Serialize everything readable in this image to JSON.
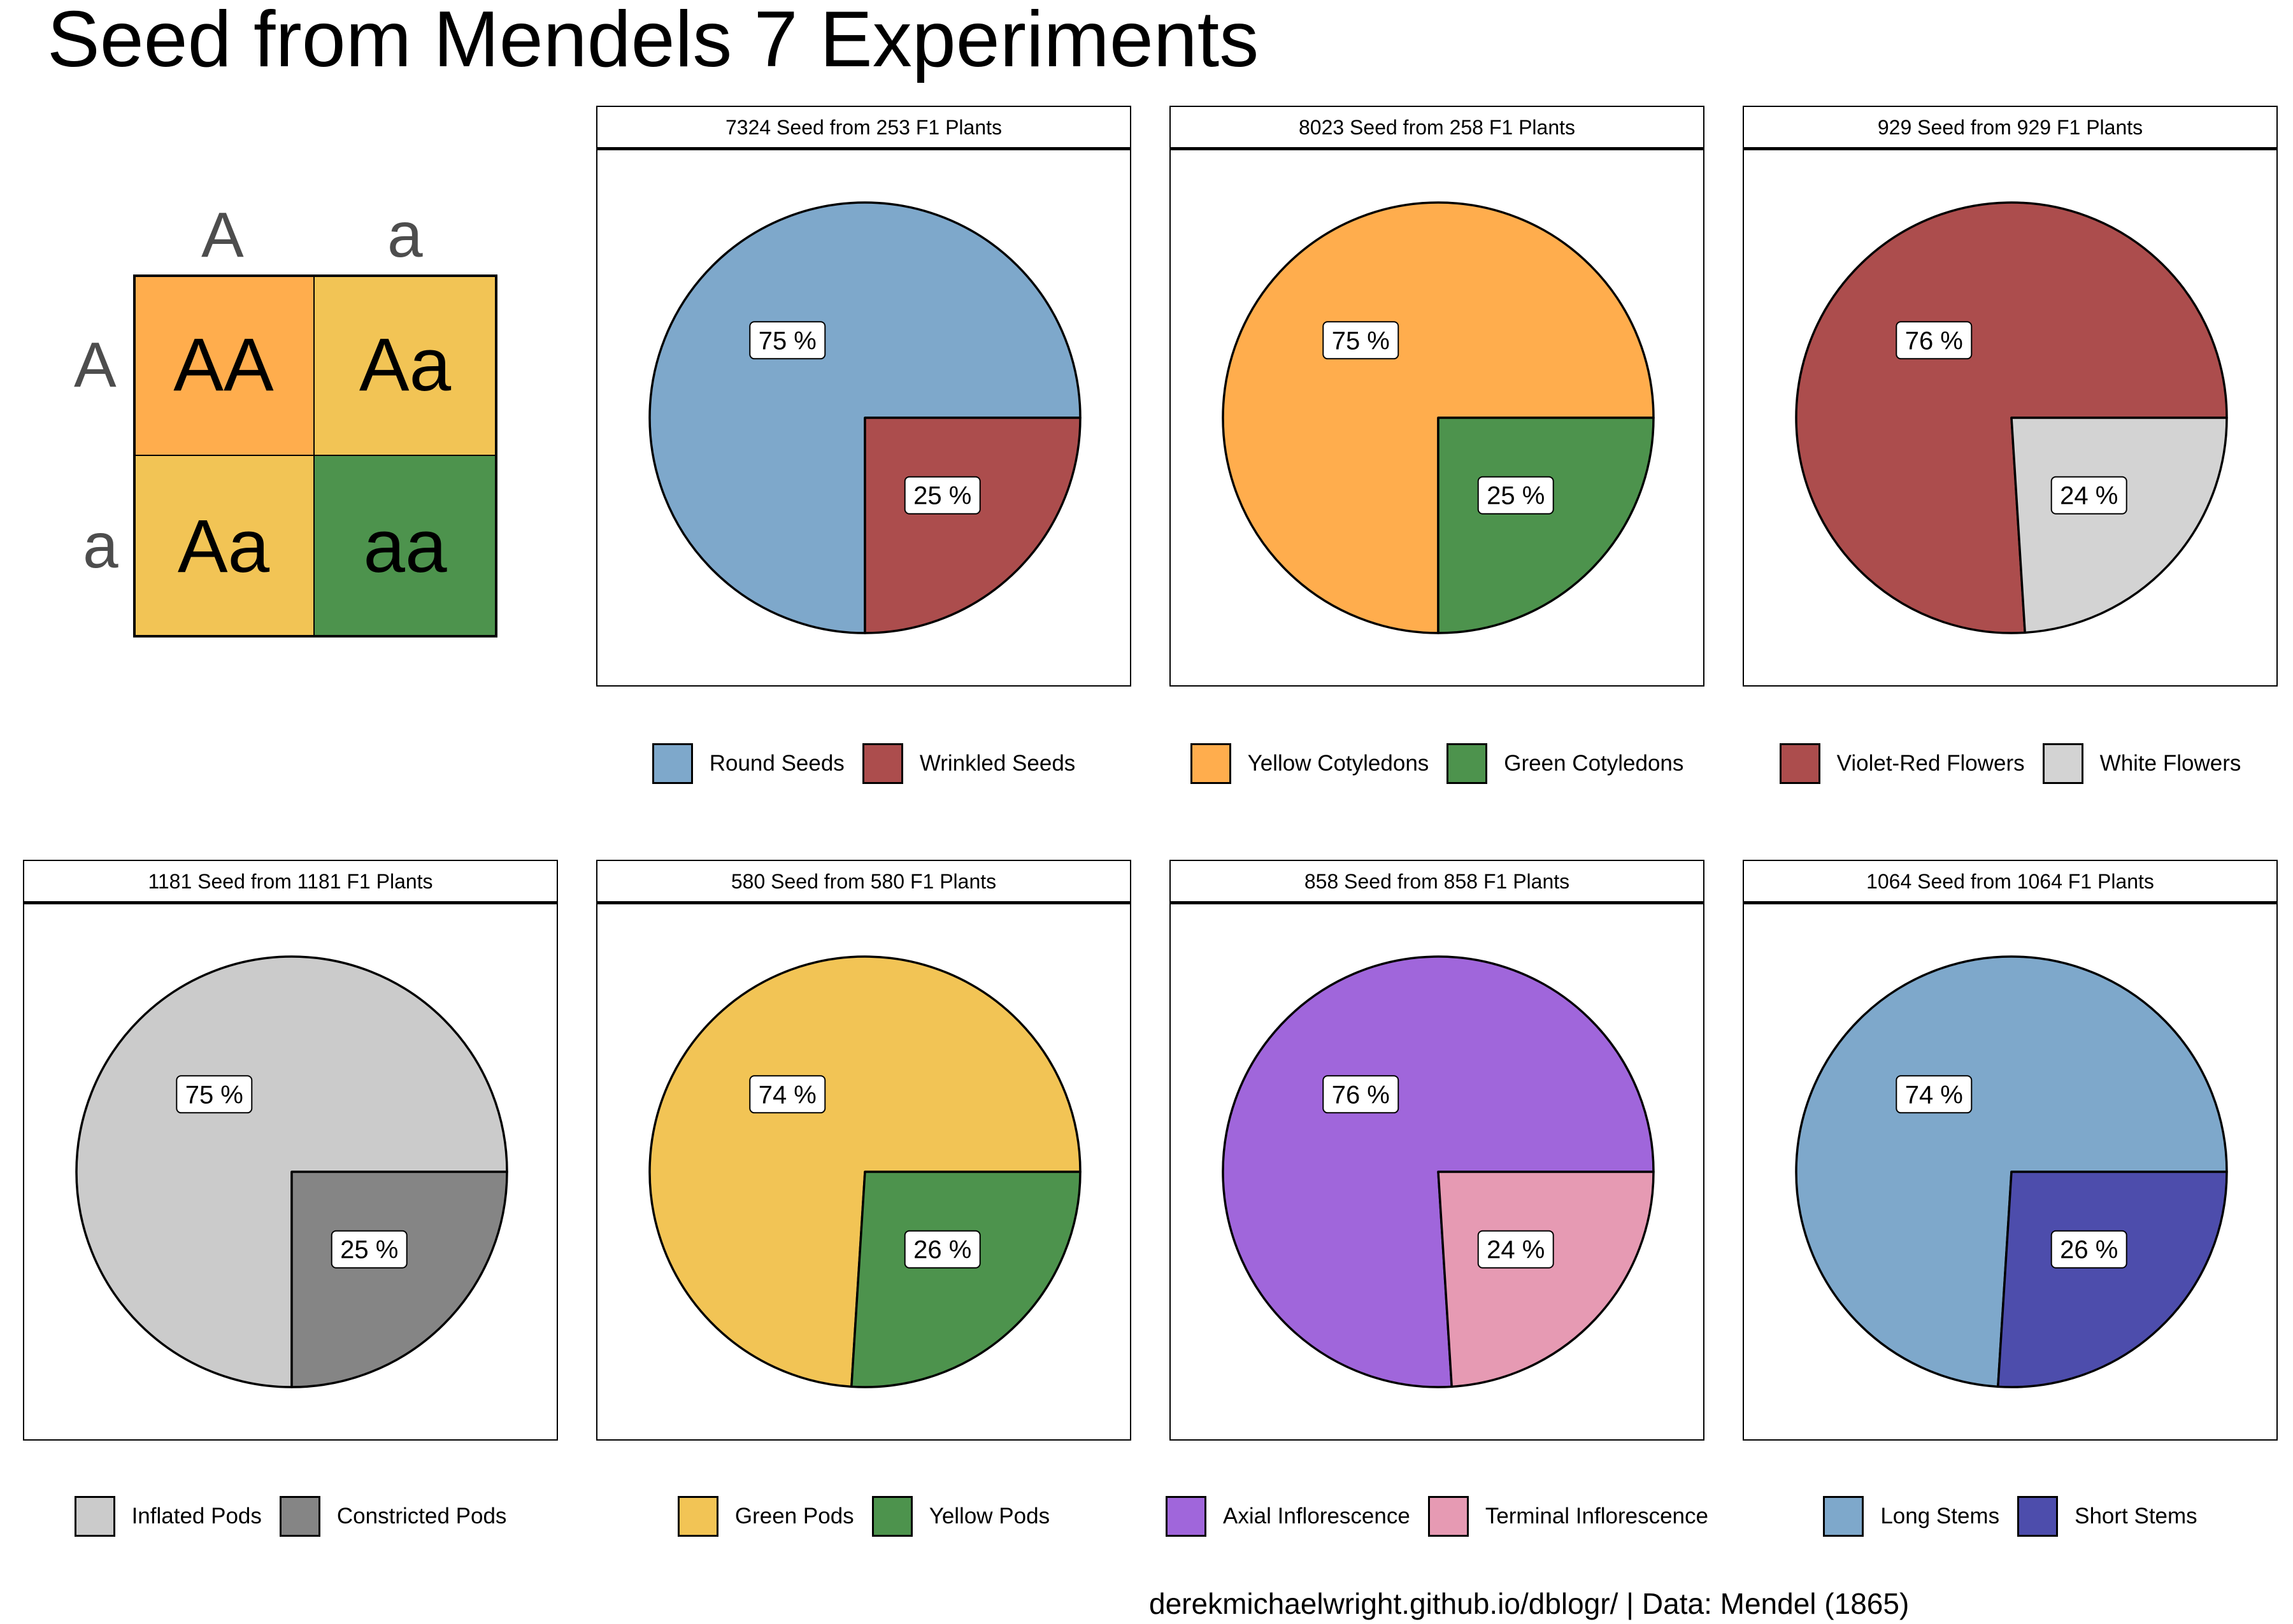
{
  "title": "Seed from Mendels 7 Experiments",
  "caption": "derekmichaelwright.github.io/dblogr/ | Data: Mendel (1865)",
  "punnett": {
    "col_headers": [
      "A",
      "a"
    ],
    "row_headers": [
      "A",
      "a"
    ],
    "cells": [
      {
        "label": "AA",
        "color": "#FFAD4D"
      },
      {
        "label": "Aa",
        "color": "#F2C455"
      },
      {
        "label": "Aa",
        "color": "#F2C455"
      },
      {
        "label": "aa",
        "color": "#4D934D"
      }
    ]
  },
  "chart_data": [
    {
      "type": "pie",
      "title": "7324 Seed from 253 F1 Plants",
      "slices": [
        {
          "name": "Round Seeds",
          "value": 75,
          "label": "75 %",
          "color": "#7EA8CB"
        },
        {
          "name": "Wrinkled Seeds",
          "value": 25,
          "label": "25 %",
          "color": "#AC4D4D"
        }
      ]
    },
    {
      "type": "pie",
      "title": "8023 Seed from 258 F1 Plants",
      "slices": [
        {
          "name": "Yellow Cotyledons",
          "value": 75,
          "label": "75 %",
          "color": "#FFAD4D"
        },
        {
          "name": "Green Cotyledons",
          "value": 25,
          "label": "25 %",
          "color": "#4D934D"
        }
      ]
    },
    {
      "type": "pie",
      "title": "929 Seed from 929 F1 Plants",
      "slices": [
        {
          "name": "Violet-Red Flowers",
          "value": 76,
          "label": "76 %",
          "color": "#AC4D4D"
        },
        {
          "name": "White Flowers",
          "value": 24,
          "label": "24 %",
          "color": "#D3D3D3"
        }
      ]
    },
    {
      "type": "pie",
      "title": "1181 Seed from 1181 F1 Plants",
      "slices": [
        {
          "name": "Inflated Pods",
          "value": 75,
          "label": "75 %",
          "color": "#CBCBCB"
        },
        {
          "name": "Constricted Pods",
          "value": 25,
          "label": "25 %",
          "color": "#858585"
        }
      ]
    },
    {
      "type": "pie",
      "title": "580 Seed from 580 F1 Plants",
      "slices": [
        {
          "name": "Green Pods",
          "value": 74,
          "label": "74 %",
          "color": "#F2C455"
        },
        {
          "name": "Yellow Pods",
          "value": 26,
          "label": "26 %",
          "color": "#4D934D"
        }
      ]
    },
    {
      "type": "pie",
      "title": "858 Seed from 858 F1 Plants",
      "slices": [
        {
          "name": "Axial Inflorescence",
          "value": 76,
          "label": "76 %",
          "color": "#A066DB"
        },
        {
          "name": "Terminal Inflorescence",
          "value": 24,
          "label": "24 %",
          "color": "#E69AB3"
        }
      ]
    },
    {
      "type": "pie",
      "title": "1064 Seed from 1064 F1 Plants",
      "slices": [
        {
          "name": "Long Stems",
          "value": 74,
          "label": "74 %",
          "color": "#7EA8CB"
        },
        {
          "name": "Short Stems",
          "value": 26,
          "label": "26 %",
          "color": "#4D4DAC"
        }
      ]
    }
  ]
}
